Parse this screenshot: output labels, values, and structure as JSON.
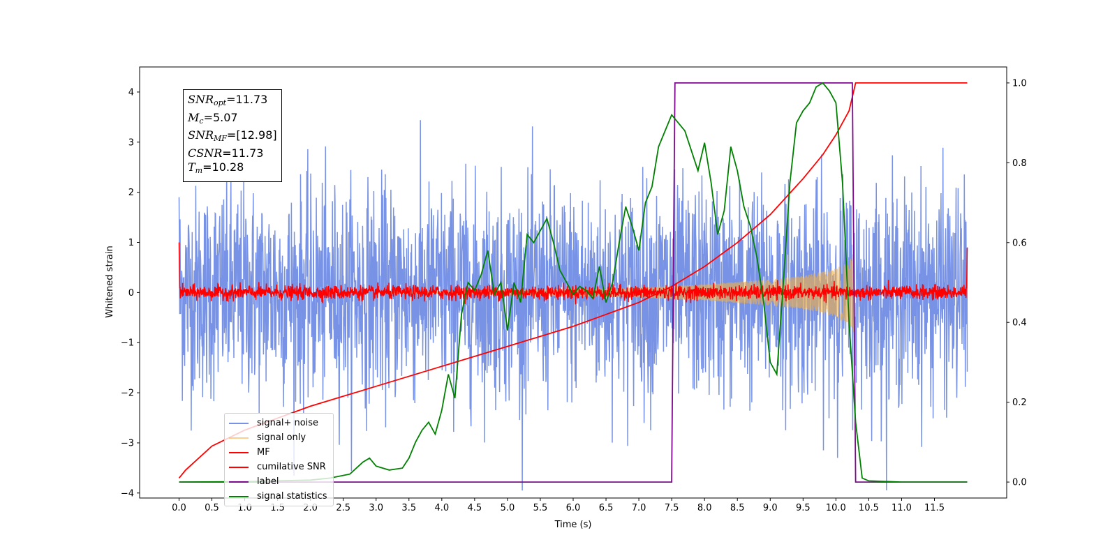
{
  "chart_data": {
    "type": "line",
    "xlabel": "Time (s)",
    "ylabel": "Whitened strain",
    "xlim": [
      -0.6,
      12.6
    ],
    "ylim": [
      -4.1,
      4.5
    ],
    "y2lim": [
      -0.04,
      1.04
    ],
    "x_ticks": [
      "0.0",
      "0.5",
      "1.0",
      "1.5",
      "2.0",
      "2.5",
      "3.0",
      "3.5",
      "4.0",
      "4.5",
      "5.0",
      "5.5",
      "6.0",
      "6.5",
      "7.0",
      "7.5",
      "8.0",
      "8.5",
      "9.0",
      "9.5",
      "10.0",
      "10.5",
      "11.0",
      "11.5"
    ],
    "y_ticks": [
      "−4",
      "−3",
      "−2",
      "−1",
      "0",
      "1",
      "2",
      "3",
      "4"
    ],
    "y2_ticks": [
      "0.0",
      "0.2",
      "0.4",
      "0.6",
      "0.8",
      "1.0"
    ],
    "annotation": {
      "snr_opt": "=11.73",
      "mc": "=5.07",
      "snr_mf": "=[12.98]",
      "csnr": "=11.73",
      "tm": "=10.28",
      "labels": {
        "snr": "SNR",
        "opt": "opt",
        "m": "M",
        "c": "c",
        "mf": "MF",
        "csnr": "CSNR",
        "t": "T",
        "tmsub": "m"
      }
    },
    "series": [
      {
        "name": "signal+ noise",
        "color": "#7893e6",
        "axis": "left",
        "description_std": 1.05
      },
      {
        "name": "signal only",
        "color": "#f5b041",
        "axis": "left",
        "envelope_t": [
          6.0,
          7.0,
          8.0,
          9.0,
          9.5,
          10.0,
          10.2,
          10.28
        ],
        "envelope_amp": [
          0.08,
          0.1,
          0.16,
          0.26,
          0.33,
          0.48,
          0.62,
          0.8
        ]
      },
      {
        "name": "MF",
        "color": "#ff0000",
        "axis": "left",
        "description_std": 0.07
      },
      {
        "name": "cumilative SNR",
        "color": "#ff0000",
        "axis": "right",
        "t": [
          0.0,
          0.1,
          0.5,
          1.0,
          2.0,
          3.0,
          4.0,
          5.0,
          6.0,
          6.5,
          7.0,
          7.5,
          8.0,
          8.5,
          9.0,
          9.5,
          9.8,
          10.0,
          10.2,
          10.3,
          12.0
        ],
        "values": [
          0.01,
          0.03,
          0.09,
          0.13,
          0.19,
          0.24,
          0.29,
          0.34,
          0.39,
          0.42,
          0.45,
          0.49,
          0.54,
          0.6,
          0.67,
          0.76,
          0.82,
          0.87,
          0.93,
          1.0,
          1.0
        ]
      },
      {
        "name": "label",
        "color": "#7d0a8c",
        "axis": "right",
        "t": [
          0.0,
          7.5,
          7.55,
          10.25,
          10.3,
          12.0
        ],
        "values": [
          0.0,
          0.0,
          1.0,
          1.0,
          0.0,
          0.0
        ]
      },
      {
        "name": "signal statistics",
        "color": "#008000",
        "axis": "right",
        "t": [
          0.0,
          1.0,
          2.0,
          2.3,
          2.6,
          2.8,
          2.9,
          3.0,
          3.2,
          3.4,
          3.5,
          3.6,
          3.7,
          3.8,
          3.9,
          4.0,
          4.1,
          4.2,
          4.3,
          4.4,
          4.5,
          4.6,
          4.7,
          4.8,
          4.9,
          5.0,
          5.1,
          5.2,
          5.3,
          5.4,
          5.5,
          5.6,
          5.7,
          5.8,
          5.9,
          6.0,
          6.1,
          6.2,
          6.3,
          6.4,
          6.5,
          6.6,
          6.7,
          6.8,
          6.9,
          7.0,
          7.1,
          7.2,
          7.3,
          7.4,
          7.5,
          7.6,
          7.7,
          7.8,
          7.9,
          8.0,
          8.1,
          8.2,
          8.3,
          8.4,
          8.5,
          8.6,
          8.7,
          8.8,
          8.9,
          9.0,
          9.1,
          9.2,
          9.3,
          9.4,
          9.5,
          9.6,
          9.7,
          9.8,
          9.9,
          10.0,
          10.1,
          10.2,
          10.3,
          10.4,
          10.5,
          11.0,
          12.0
        ],
        "values": [
          0.0,
          0.001,
          0.005,
          0.01,
          0.02,
          0.05,
          0.06,
          0.04,
          0.03,
          0.035,
          0.06,
          0.1,
          0.13,
          0.15,
          0.12,
          0.18,
          0.27,
          0.21,
          0.42,
          0.5,
          0.48,
          0.52,
          0.58,
          0.47,
          0.5,
          0.38,
          0.5,
          0.45,
          0.62,
          0.6,
          0.63,
          0.66,
          0.6,
          0.53,
          0.5,
          0.47,
          0.49,
          0.48,
          0.46,
          0.54,
          0.45,
          0.5,
          0.6,
          0.69,
          0.64,
          0.58,
          0.7,
          0.74,
          0.84,
          0.88,
          0.92,
          0.9,
          0.88,
          0.83,
          0.78,
          0.85,
          0.75,
          0.62,
          0.68,
          0.84,
          0.78,
          0.69,
          0.64,
          0.56,
          0.45,
          0.3,
          0.27,
          0.5,
          0.75,
          0.9,
          0.93,
          0.95,
          0.99,
          1.0,
          0.98,
          0.95,
          0.75,
          0.4,
          0.15,
          0.01,
          0.003,
          0.0,
          0.0
        ]
      }
    ],
    "legend_position": "lower-left"
  }
}
